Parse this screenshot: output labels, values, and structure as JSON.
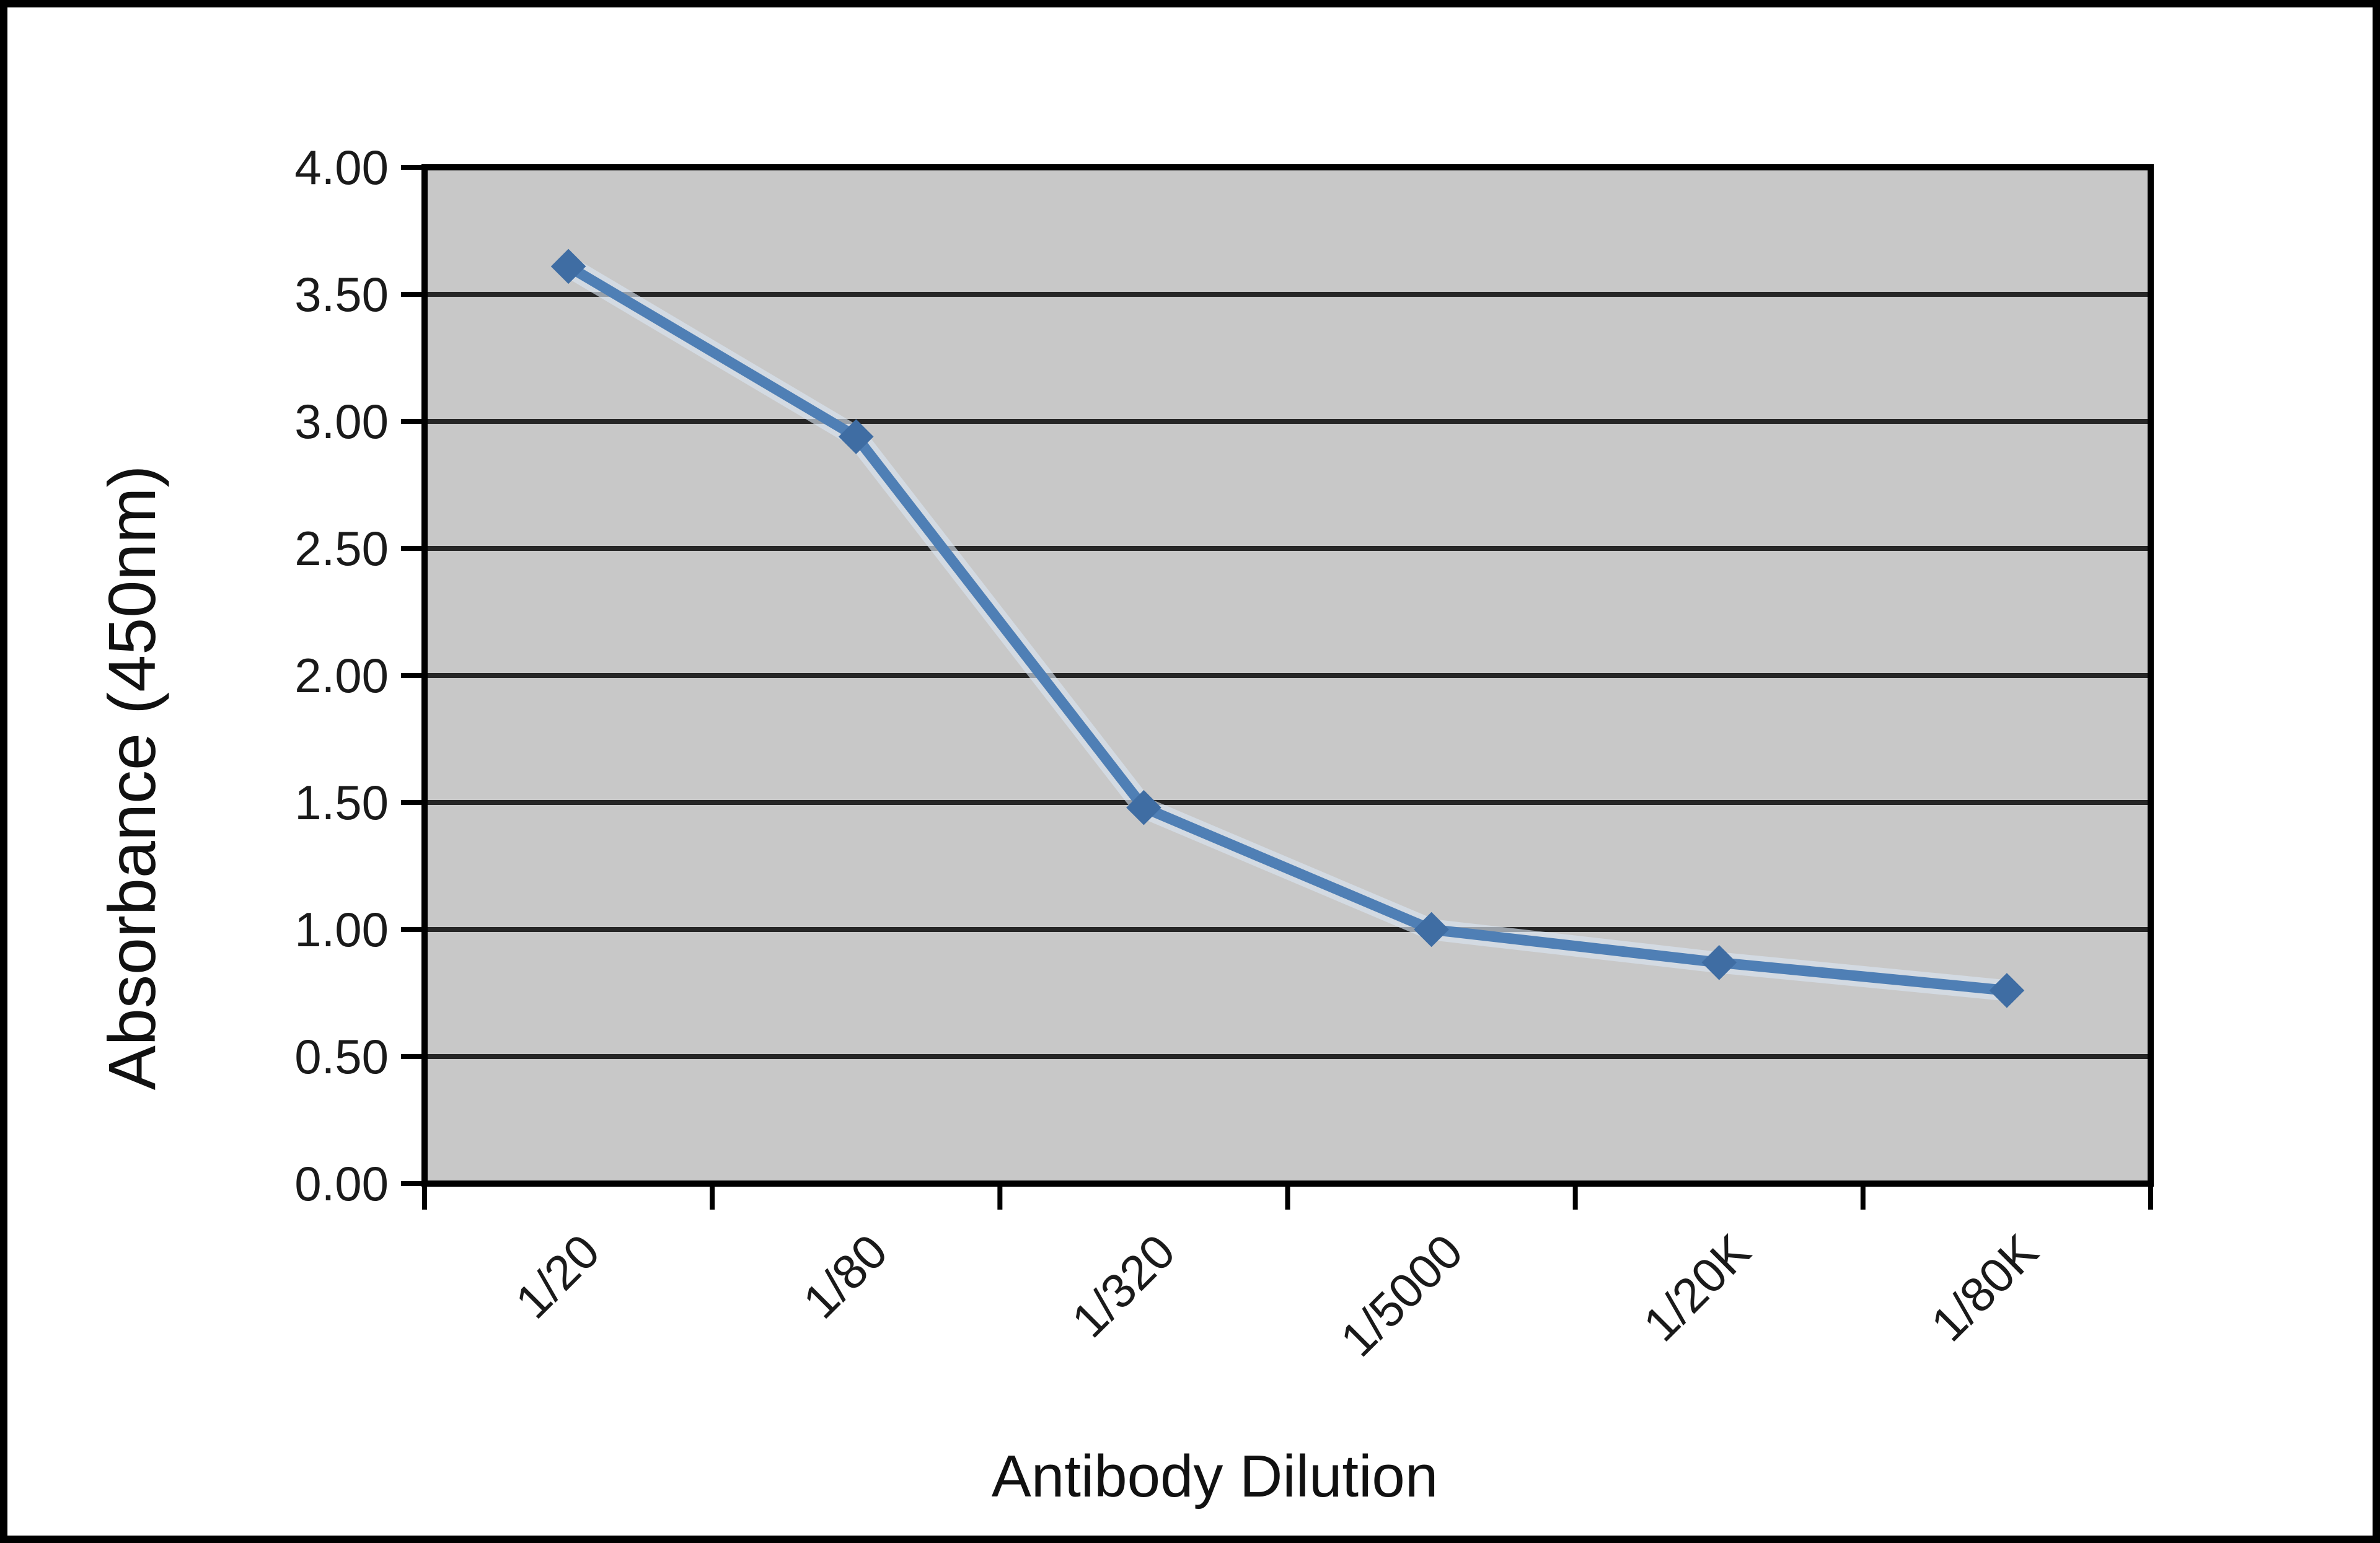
{
  "figure": {
    "background": "#ffffff",
    "frame_color": "#000000"
  },
  "chart_data": {
    "type": "line",
    "title": "",
    "xlabel": "Antibody Dilution",
    "ylabel": "Absorbance (450nm)",
    "categories": [
      "1/20",
      "1/80",
      "1/320",
      "1/5000",
      "1/20K",
      "1/80K"
    ],
    "values": [
      3.61,
      2.94,
      1.48,
      1.0,
      0.87,
      0.76
    ],
    "ylim": [
      0,
      4
    ],
    "ytick_step": 0.5,
    "y_tick_labels": [
      "4.00",
      "3.50",
      "3.00",
      "2.50",
      "2.00",
      "1.50",
      "1.00",
      "0.50",
      "0.00"
    ],
    "grid": true,
    "legend": "none",
    "x_label_rotation_deg": -45,
    "marker_shape": "diamond",
    "plot_background": "#c8c8c8",
    "gridline_color": "#262626",
    "axis_color": "#000000",
    "line_color": "#4f7fb5",
    "line_halo_color": "#d9e4ef",
    "marker_color": "#3f6da3",
    "text_color": "#1a1a1a"
  }
}
